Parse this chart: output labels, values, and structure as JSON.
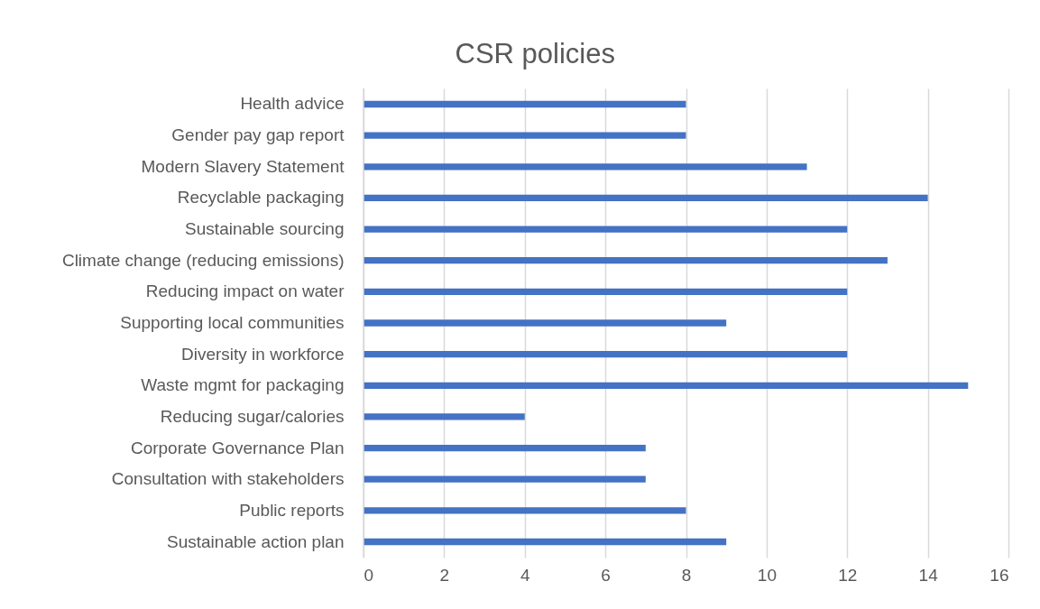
{
  "chart_data": {
    "type": "bar",
    "orientation": "horizontal",
    "title": "CSR policies",
    "categories": [
      "Health advice",
      "Gender pay gap report",
      "Modern Slavery Statement",
      "Recyclable packaging",
      "Sustainable sourcing",
      "Climate change (reducing emissions)",
      "Reducing impact on water",
      "Supporting local communities",
      "Diversity in workforce",
      "Waste mgmt for packaging",
      "Reducing sugar/calories",
      "Corporate Governance Plan",
      "Consultation with stakeholders",
      "Public reports",
      "Sustainable action plan"
    ],
    "values": [
      8,
      8,
      11,
      14,
      12,
      13,
      12,
      9,
      12,
      15,
      4,
      7,
      7,
      8,
      9
    ],
    "color": "#4472c4",
    "xlim": [
      0,
      16
    ],
    "xticks": [
      0,
      2,
      4,
      6,
      8,
      10,
      12,
      14,
      16
    ],
    "grid": "x"
  }
}
